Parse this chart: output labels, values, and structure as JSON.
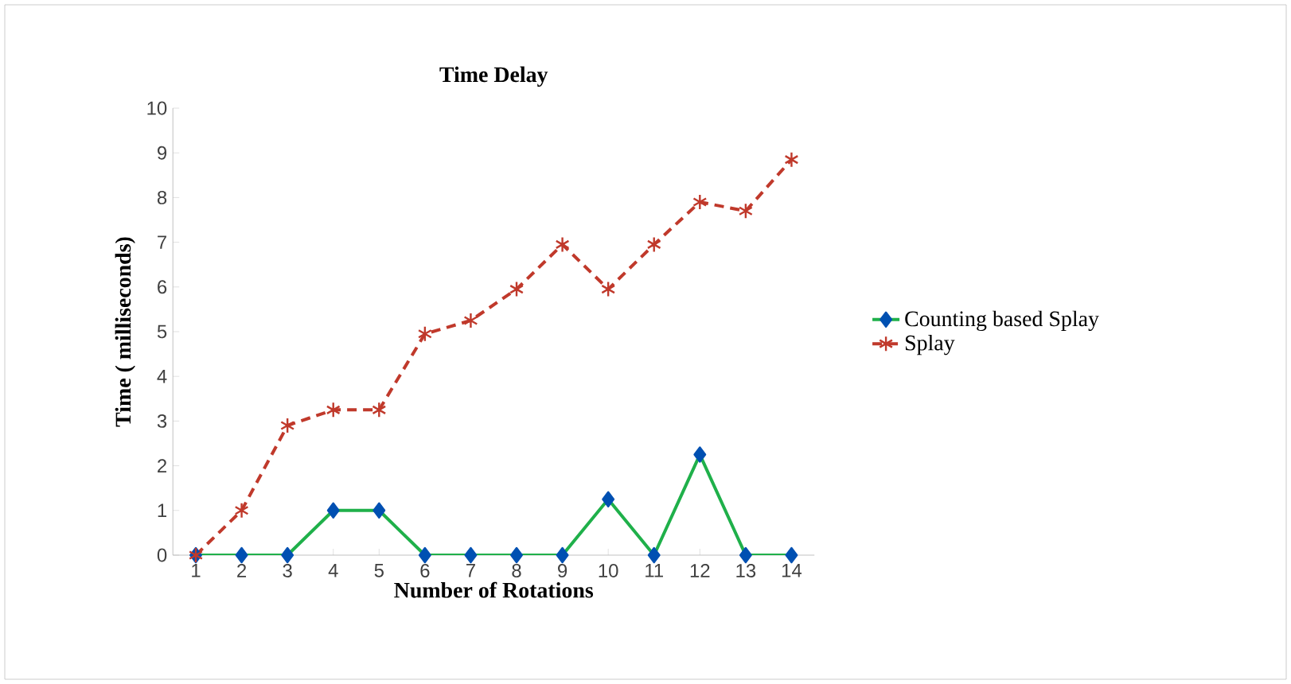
{
  "chart_data": {
    "type": "line",
    "title": "Time Delay",
    "xlabel": "Number of Rotations",
    "ylabel": "Time ( milliseconds)",
    "categories": [
      "1",
      "2",
      "3",
      "4",
      "5",
      "6",
      "7",
      "8",
      "9",
      "10",
      "11",
      "12",
      "13",
      "14"
    ],
    "ylim": [
      0,
      10
    ],
    "yticks": [
      0,
      1,
      2,
      3,
      4,
      5,
      6,
      7,
      8,
      9,
      10
    ],
    "legend": "right",
    "series": [
      {
        "name": "Counting based Splay",
        "color": "#1fb04a",
        "marker": "diamond",
        "line_style": "solid",
        "values": [
          0,
          0,
          0,
          1,
          1,
          0,
          0,
          0,
          0,
          1.25,
          0,
          2.25,
          0,
          0
        ]
      },
      {
        "name": "Splay",
        "color": "#c0392b",
        "marker": "cross",
        "line_style": "dashed",
        "values": [
          0,
          1,
          2.9,
          3.25,
          3.25,
          4.95,
          5.25,
          5.95,
          6.95,
          5.95,
          6.95,
          7.9,
          7.7,
          8.85
        ]
      }
    ]
  }
}
